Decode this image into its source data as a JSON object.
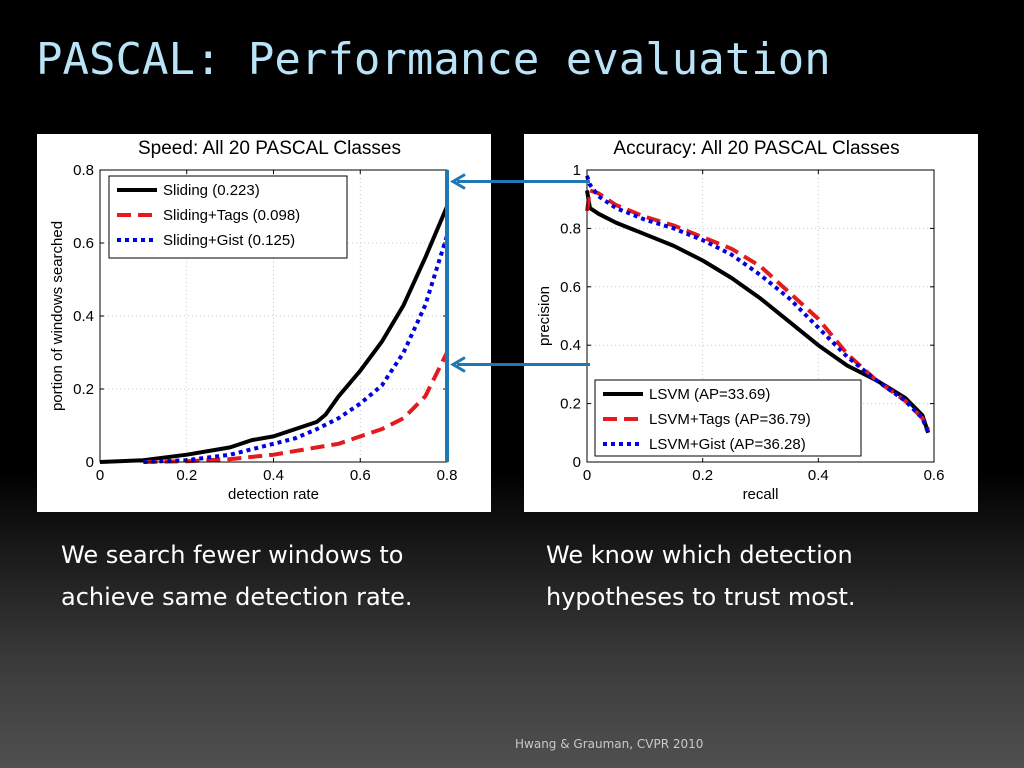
{
  "slide": {
    "title": "PASCAL: Performance evaluation",
    "left_caption": [
      "We search fewer windows to",
      "achieve same detection rate."
    ],
    "right_caption": [
      "We know which detection",
      "hypotheses to trust most."
    ],
    "credit": "Hwang & Grauman, CVPR 2010",
    "arrow_color": "#1f78b4"
  },
  "chart_data": [
    {
      "type": "line",
      "title_prefix": "Speed:",
      "title": "All 20 PASCAL Classes",
      "xlabel": "detection rate",
      "ylabel": "portion of windows searched",
      "xlim": [
        0,
        0.8
      ],
      "ylim": [
        0,
        0.8
      ],
      "xticks": [
        0,
        0.2,
        0.4,
        0.6,
        0.8
      ],
      "yticks": [
        0,
        0.2,
        0.4,
        0.6,
        0.8
      ],
      "xtick_labels": [
        "0",
        "0.2",
        "0.4",
        "0.6",
        "0.8"
      ],
      "ytick_labels": [
        "0",
        "0.2",
        "0.4",
        "0.6",
        "0.8"
      ],
      "grid": true,
      "legend_position": "top-left",
      "series": [
        {
          "name": "Sliding (0.223)",
          "color": "#000000",
          "style": "solid",
          "x": [
            0,
            0.1,
            0.2,
            0.3,
            0.35,
            0.4,
            0.45,
            0.5,
            0.52,
            0.55,
            0.6,
            0.65,
            0.7,
            0.75,
            0.8
          ],
          "y": [
            0,
            0.005,
            0.02,
            0.04,
            0.06,
            0.07,
            0.09,
            0.11,
            0.13,
            0.18,
            0.25,
            0.33,
            0.43,
            0.56,
            0.7
          ]
        },
        {
          "name": "Sliding+Tags (0.098)",
          "color": "#e41a1c",
          "style": "dashed",
          "x": [
            0.1,
            0.2,
            0.3,
            0.4,
            0.5,
            0.55,
            0.6,
            0.65,
            0.7,
            0.75,
            0.8
          ],
          "y": [
            0,
            0.002,
            0.008,
            0.02,
            0.04,
            0.05,
            0.07,
            0.09,
            0.12,
            0.18,
            0.3
          ]
        },
        {
          "name": "Sliding+Gist (0.125)",
          "color": "#0000e0",
          "style": "dotted",
          "x": [
            0.1,
            0.2,
            0.3,
            0.4,
            0.45,
            0.5,
            0.55,
            0.6,
            0.65,
            0.7,
            0.75,
            0.8
          ],
          "y": [
            0,
            0.005,
            0.02,
            0.05,
            0.065,
            0.09,
            0.12,
            0.16,
            0.21,
            0.3,
            0.43,
            0.62
          ]
        }
      ],
      "marker_x": 0.8
    },
    {
      "type": "line",
      "title_prefix": "Accuracy:",
      "title": "All 20 PASCAL Classes",
      "xlabel": "recall",
      "ylabel": "precision",
      "xlim": [
        0,
        0.6
      ],
      "ylim": [
        0,
        1
      ],
      "xticks": [
        0,
        0.2,
        0.4,
        0.6
      ],
      "yticks": [
        0,
        0.2,
        0.4,
        0.6,
        0.8,
        1
      ],
      "xtick_labels": [
        "0",
        "0.2",
        "0.4",
        "0.6"
      ],
      "ytick_labels": [
        "0",
        "0.2",
        "0.4",
        "0.6",
        "0.8",
        "1"
      ],
      "grid": true,
      "legend_position": "bottom-left",
      "series": [
        {
          "name": "LSVM (AP=33.69)",
          "color": "#000000",
          "style": "solid",
          "x": [
            0,
            0.005,
            0.02,
            0.05,
            0.1,
            0.15,
            0.2,
            0.25,
            0.3,
            0.35,
            0.4,
            0.45,
            0.5,
            0.55,
            0.58,
            0.59
          ],
          "y": [
            0.93,
            0.87,
            0.85,
            0.82,
            0.78,
            0.74,
            0.69,
            0.63,
            0.56,
            0.48,
            0.4,
            0.33,
            0.28,
            0.22,
            0.16,
            0.1
          ]
        },
        {
          "name": "LSVM+Tags (AP=36.79)",
          "color": "#e41a1c",
          "style": "dashed",
          "x": [
            0,
            0.005,
            0.02,
            0.05,
            0.1,
            0.15,
            0.2,
            0.25,
            0.3,
            0.35,
            0.4,
            0.45,
            0.5,
            0.55,
            0.58,
            0.59
          ],
          "y": [
            0.86,
            0.93,
            0.92,
            0.88,
            0.84,
            0.81,
            0.77,
            0.73,
            0.67,
            0.58,
            0.49,
            0.37,
            0.28,
            0.21,
            0.15,
            0.11
          ]
        },
        {
          "name": "LSVM+Gist (AP=36.28)",
          "color": "#0000e0",
          "style": "dotted",
          "x": [
            0,
            0.005,
            0.02,
            0.05,
            0.1,
            0.15,
            0.2,
            0.25,
            0.3,
            0.35,
            0.4,
            0.45,
            0.5,
            0.55,
            0.58,
            0.59
          ],
          "y": [
            0.98,
            0.95,
            0.91,
            0.87,
            0.83,
            0.8,
            0.76,
            0.71,
            0.64,
            0.56,
            0.46,
            0.36,
            0.28,
            0.21,
            0.15,
            0.1
          ]
        }
      ]
    }
  ]
}
